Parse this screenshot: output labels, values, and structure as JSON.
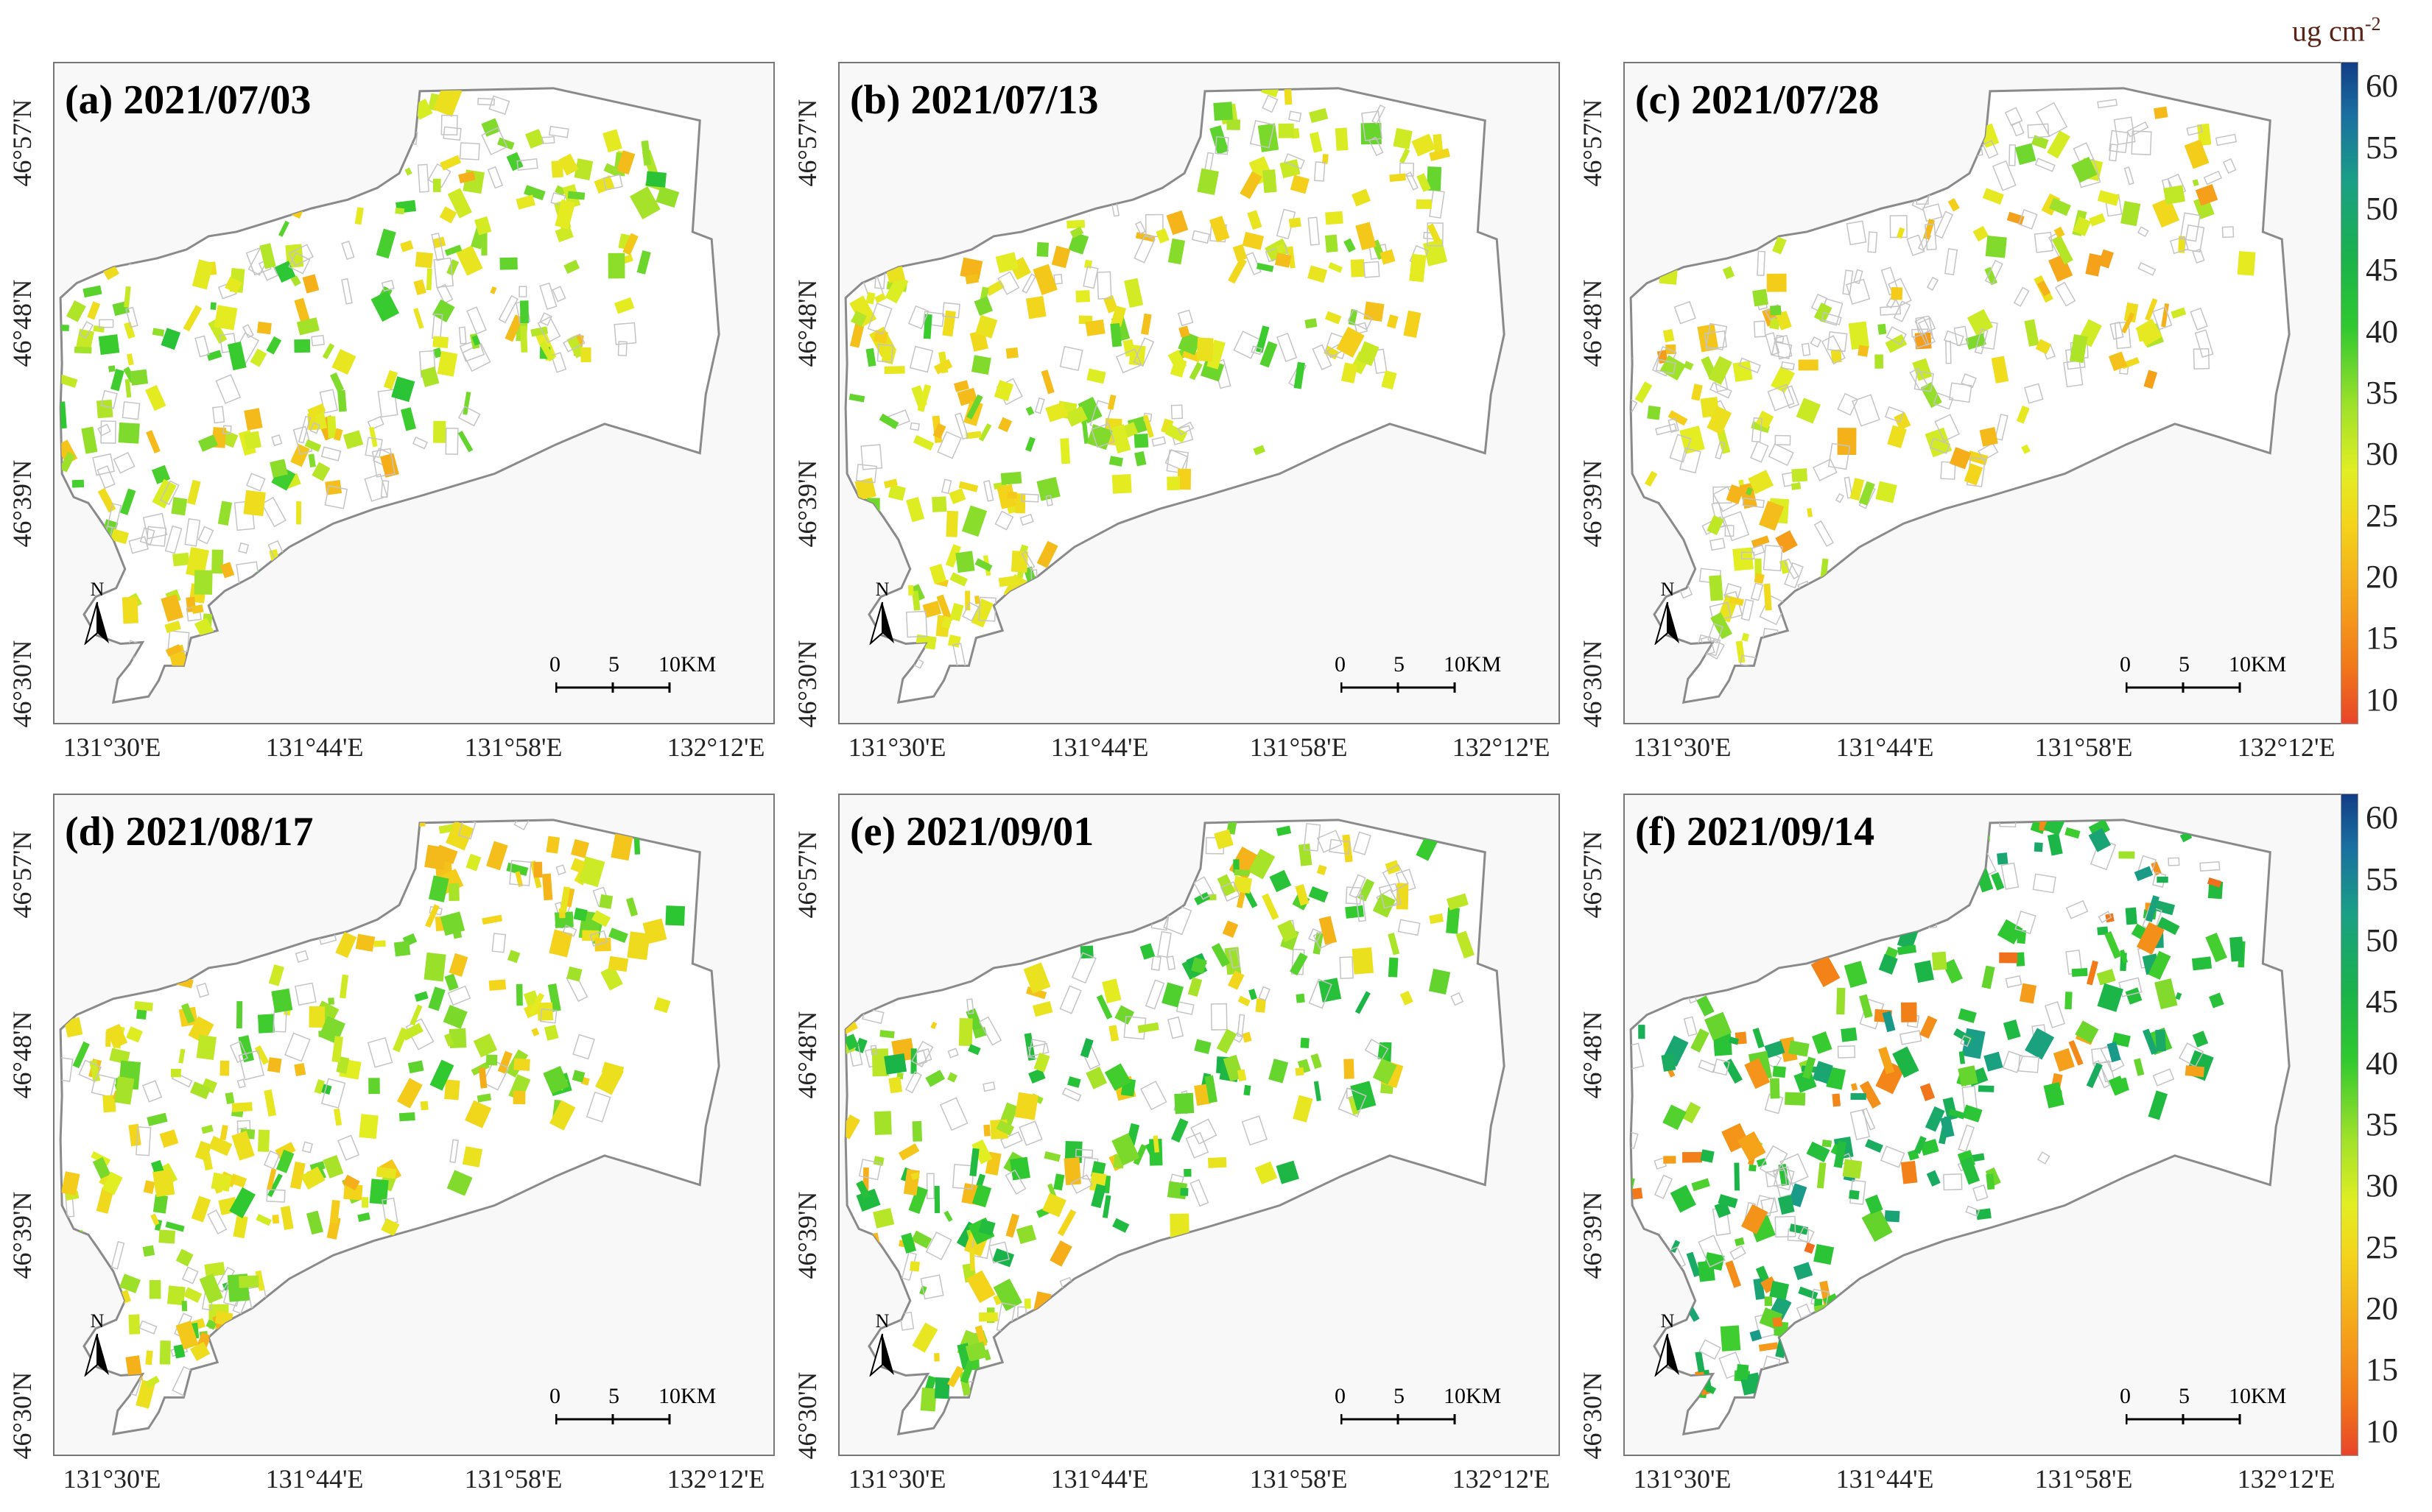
{
  "panels": [
    {
      "id": "a",
      "title": "(a) 2021/07/03"
    },
    {
      "id": "b",
      "title": "(b) 2021/07/13"
    },
    {
      "id": "c",
      "title": "(c) 2021/07/28"
    },
    {
      "id": "d",
      "title": "(d) 2021/08/17"
    },
    {
      "id": "e",
      "title": "(e) 2021/09/01"
    },
    {
      "id": "f",
      "title": "(f) 2021/09/14"
    }
  ],
  "latitude_labels": [
    "46°57'N",
    "46°48'N",
    "46°39'N",
    "46°30'N"
  ],
  "longitude_labels": [
    "131°30'E",
    "131°44'E",
    "131°58'E",
    "132°12'E"
  ],
  "north_arrow_label": "N",
  "scale_bar": {
    "labels": [
      "0",
      "5",
      "10"
    ],
    "unit": "KM"
  },
  "colorbar": {
    "unit": "ug cm",
    "unit_exponent": "-2",
    "ticks": [
      "60",
      "55",
      "50",
      "45",
      "40",
      "35",
      "30",
      "25",
      "20",
      "15",
      "10"
    ],
    "range": [
      8,
      62
    ],
    "colors": [
      "#e8452a",
      "#f27a19",
      "#f5a01a",
      "#f4d31b",
      "#e2ee22",
      "#9fe12a",
      "#30c930",
      "#1ab34a",
      "#1a9f86",
      "#1a6fa0",
      "#123e87"
    ]
  }
}
